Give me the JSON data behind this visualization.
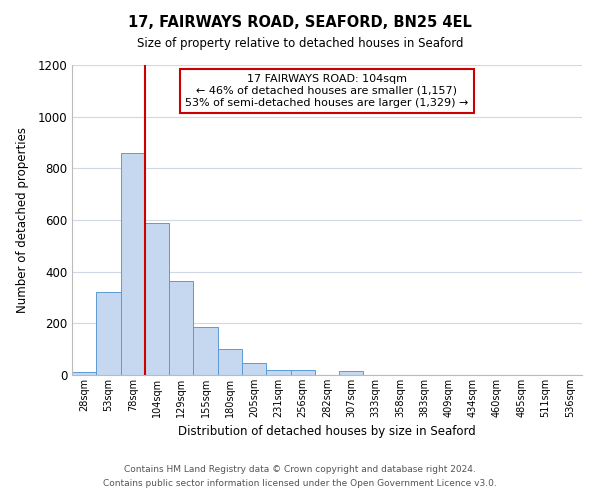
{
  "title": "17, FAIRWAYS ROAD, SEAFORD, BN25 4EL",
  "subtitle": "Size of property relative to detached houses in Seaford",
  "xlabel": "Distribution of detached houses by size in Seaford",
  "ylabel": "Number of detached properties",
  "bar_labels": [
    "28sqm",
    "53sqm",
    "78sqm",
    "104sqm",
    "129sqm",
    "155sqm",
    "180sqm",
    "205sqm",
    "231sqm",
    "256sqm",
    "282sqm",
    "307sqm",
    "333sqm",
    "358sqm",
    "383sqm",
    "409sqm",
    "434sqm",
    "460sqm",
    "485sqm",
    "511sqm",
    "536sqm"
  ],
  "bar_values": [
    10,
    320,
    860,
    590,
    365,
    185,
    100,
    45,
    20,
    20,
    0,
    15,
    0,
    0,
    0,
    0,
    0,
    0,
    0,
    0,
    0
  ],
  "bar_color": "#c5d8f0",
  "bar_edgecolor": "#5b9bd5",
  "vline_index": 3,
  "vline_color": "#cc0000",
  "annotation_title": "17 FAIRWAYS ROAD: 104sqm",
  "annotation_line1": "← 46% of detached houses are smaller (1,157)",
  "annotation_line2": "53% of semi-detached houses are larger (1,329) →",
  "annotation_box_edgecolor": "#cc0000",
  "ylim": [
    0,
    1200
  ],
  "yticks": [
    0,
    200,
    400,
    600,
    800,
    1000,
    1200
  ],
  "footnote1": "Contains HM Land Registry data © Crown copyright and database right 2024.",
  "footnote2": "Contains public sector information licensed under the Open Government Licence v3.0.",
  "background_color": "#ffffff",
  "grid_color": "#d0d8e8"
}
